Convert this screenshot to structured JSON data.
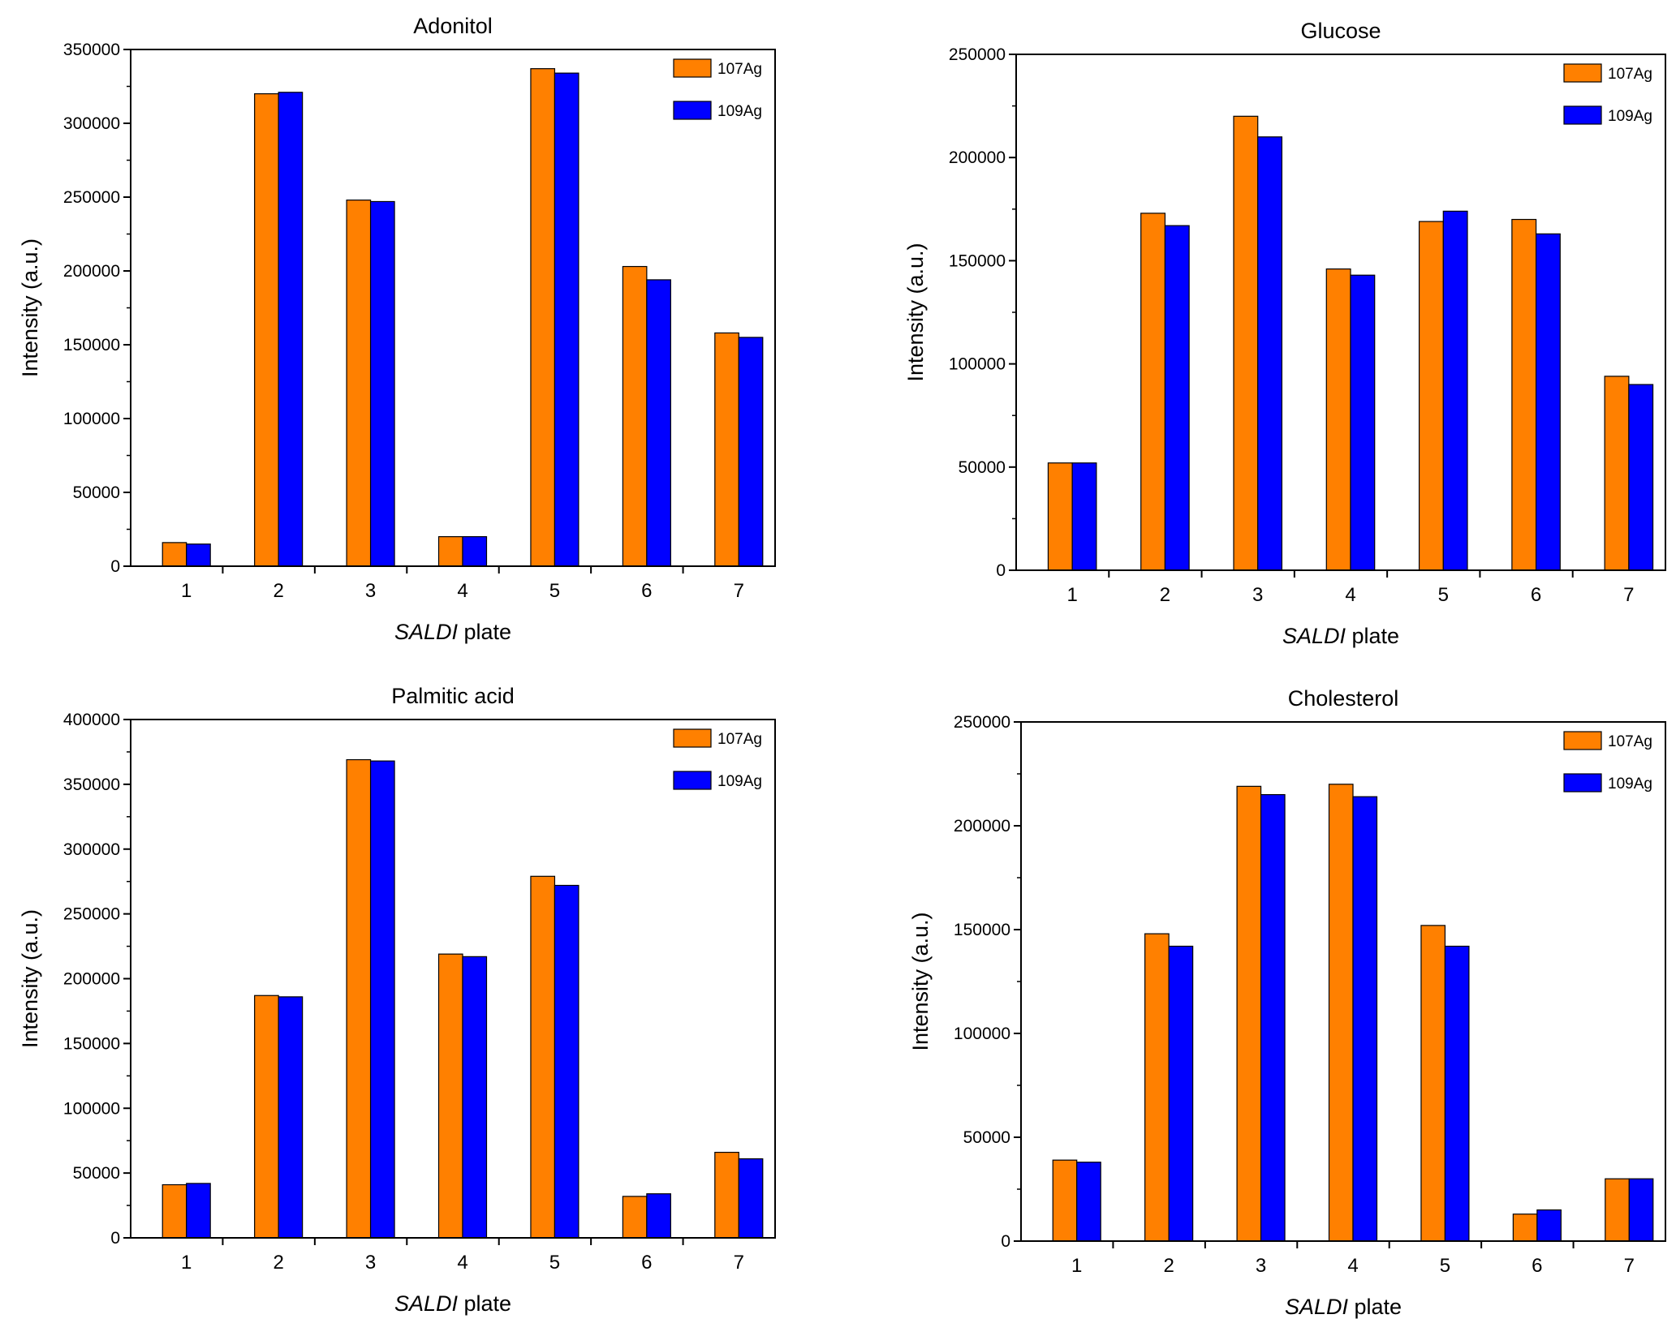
{
  "chart_data": [
    {
      "type": "bar",
      "title": "Adonitol",
      "xlabel_italic": "SALDI",
      "xlabel_rest": " plate",
      "ylabel": "Intensity (a.u.)",
      "ylim": [
        0,
        350000
      ],
      "yticks": [
        "0",
        "50000",
        "100000",
        "150000",
        "200000",
        "250000",
        "300000",
        "350000"
      ],
      "categories": [
        "1",
        "2",
        "3",
        "4",
        "5",
        "6",
        "7"
      ],
      "legend_position": "top-right",
      "series": [
        {
          "name": "107Ag",
          "color": "#ff8000",
          "values": [
            16000,
            320000,
            248000,
            20000,
            337000,
            203000,
            158000
          ]
        },
        {
          "name": "109Ag",
          "color": "#0000ff",
          "values": [
            15000,
            321000,
            247000,
            20000,
            334000,
            194000,
            155000
          ]
        }
      ]
    },
    {
      "type": "bar",
      "title": "Glucose",
      "xlabel_italic": "SALDI",
      "xlabel_rest": " plate",
      "ylabel": "Intensity (a.u.)",
      "ylim": [
        0,
        250000
      ],
      "yticks": [
        "0",
        "50000",
        "100000",
        "150000",
        "200000",
        "250000"
      ],
      "categories": [
        "1",
        "2",
        "3",
        "4",
        "5",
        "6",
        "7"
      ],
      "legend_position": "top-right",
      "series": [
        {
          "name": "107Ag",
          "color": "#ff8000",
          "values": [
            52000,
            173000,
            220000,
            146000,
            169000,
            170000,
            94000
          ]
        },
        {
          "name": "109Ag",
          "color": "#0000ff",
          "values": [
            52000,
            167000,
            210000,
            143000,
            174000,
            163000,
            90000
          ]
        }
      ]
    },
    {
      "type": "bar",
      "title": "Palmitic acid",
      "xlabel_italic": "SALDI",
      "xlabel_rest": " plate",
      "ylabel": "Intensity (a.u.)",
      "ylim": [
        0,
        400000
      ],
      "yticks": [
        "0",
        "50000",
        "100000",
        "150000",
        "200000",
        "250000",
        "300000",
        "350000",
        "400000"
      ],
      "categories": [
        "1",
        "2",
        "3",
        "4",
        "5",
        "6",
        "7"
      ],
      "legend_position": "top-right",
      "series": [
        {
          "name": "107Ag",
          "color": "#ff8000",
          "values": [
            41000,
            187000,
            369000,
            219000,
            279000,
            32000,
            66000
          ]
        },
        {
          "name": "109Ag",
          "color": "#0000ff",
          "values": [
            42000,
            186000,
            368000,
            217000,
            272000,
            34000,
            61000
          ]
        }
      ]
    },
    {
      "type": "bar",
      "title": "Cholesterol",
      "xlabel_italic": "SALDI",
      "xlabel_rest": " plate",
      "ylabel": "Intensity (a.u.)",
      "ylim": [
        0,
        250000
      ],
      "yticks": [
        "0",
        "50000",
        "100000",
        "150000",
        "200000",
        "250000"
      ],
      "categories": [
        "1",
        "2",
        "3",
        "4",
        "5",
        "6",
        "7"
      ],
      "legend_position": "top-right",
      "series": [
        {
          "name": "107Ag",
          "color": "#ff8000",
          "values": [
            39000,
            148000,
            219000,
            220000,
            152000,
            13000,
            30000
          ]
        },
        {
          "name": "109Ag",
          "color": "#0000ff",
          "values": [
            38000,
            142000,
            215000,
            214000,
            142000,
            15000,
            30000
          ]
        }
      ]
    }
  ]
}
